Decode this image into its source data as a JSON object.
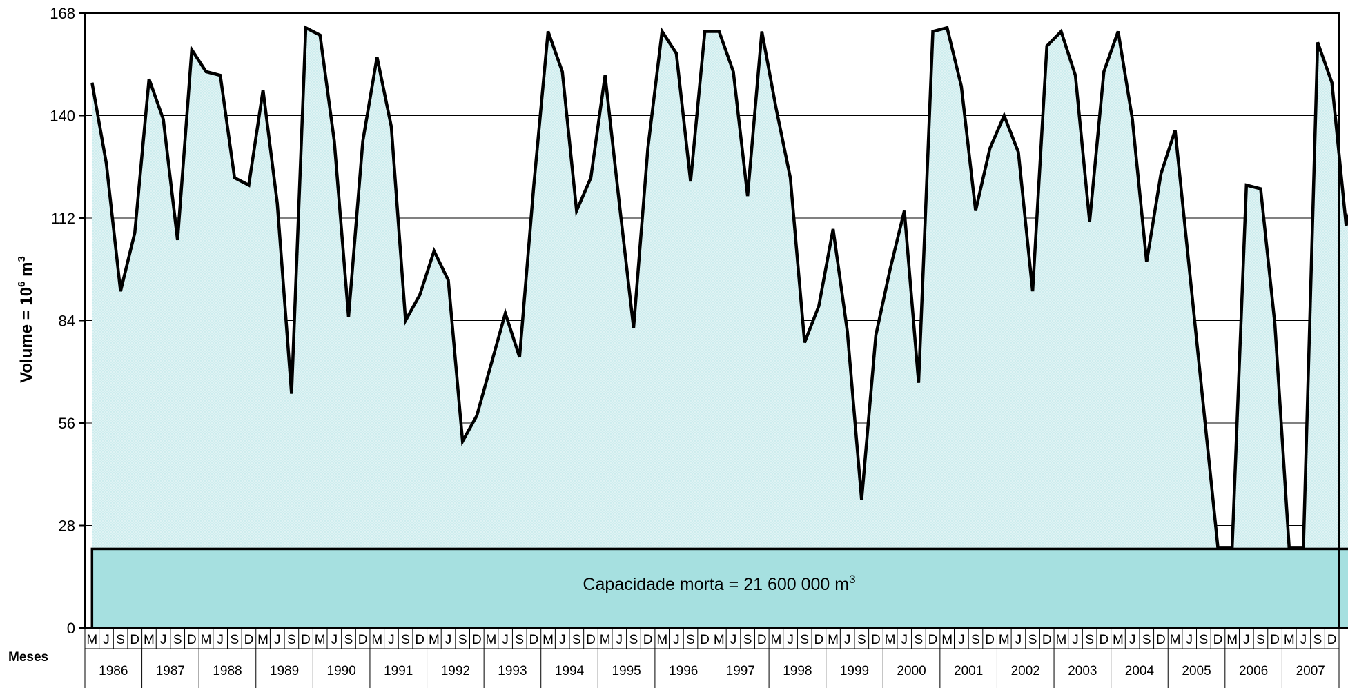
{
  "chart_data": {
    "type": "area",
    "title": "",
    "ylabel": "Volume = 10",
    "ylabel_sup": "6",
    "ylabel_unit": " m",
    "ylabel_unit_sup": "3",
    "xlabel": "Meses",
    "ylim": [
      0,
      168
    ],
    "yticks": [
      0,
      28,
      56,
      84,
      112,
      140,
      168
    ],
    "grid": true,
    "month_labels": [
      "M",
      "J",
      "S",
      "D"
    ],
    "years": [
      "1986",
      "1987",
      "1988",
      "1989",
      "1990",
      "1991",
      "1992",
      "1993",
      "1994",
      "1995",
      "1996",
      "1997",
      "1998",
      "1999",
      "2000",
      "2001",
      "2002",
      "2003",
      "2004",
      "2005",
      "2006",
      "2007"
    ],
    "values": [
      149,
      127,
      92,
      108,
      150,
      139,
      106,
      158,
      152,
      151,
      123,
      121,
      147,
      116,
      64,
      164,
      162,
      133,
      85,
      133,
      156,
      137,
      84,
      91,
      103,
      95,
      51,
      58,
      72,
      86,
      74,
      121,
      163,
      152,
      114,
      123,
      151,
      116,
      82,
      131,
      163,
      157,
      122,
      163,
      163,
      152,
      118,
      163,
      142,
      123,
      78,
      88,
      109,
      81,
      35,
      80,
      98,
      114,
      67,
      163,
      164,
      148,
      114,
      131,
      140,
      130,
      92,
      159,
      163,
      151,
      111,
      152,
      163,
      139,
      100,
      124,
      136,
      98,
      60,
      22,
      22,
      121,
      120,
      83,
      22,
      22,
      160,
      149,
      110,
      124
    ],
    "dead_storage_value": 21.6,
    "annotation": "Capacidade morta = 21 600 000 m",
    "annotation_sup": "3",
    "colors": {
      "area_fill": "#d8f0f1",
      "line": "#000000",
      "dead_storage_fill": "#a6e0e0",
      "grid": "#000000"
    }
  }
}
